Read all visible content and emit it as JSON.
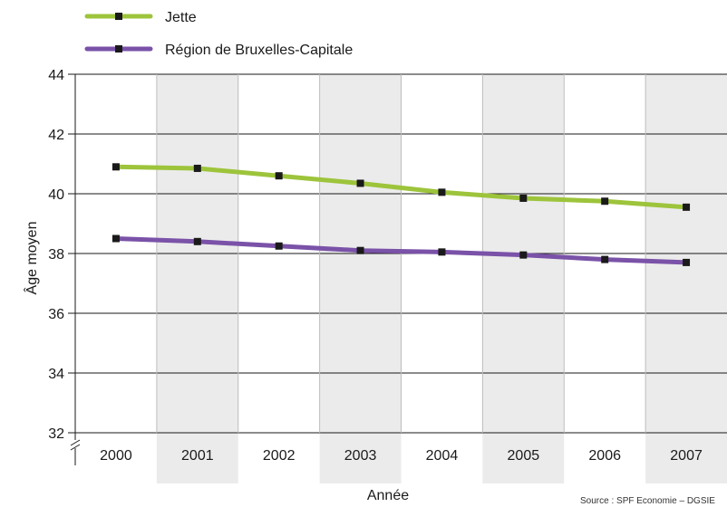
{
  "chart_data": {
    "type": "line",
    "categories": [
      "2000",
      "2001",
      "2002",
      "2003",
      "2004",
      "2005",
      "2006",
      "2007"
    ],
    "series": [
      {
        "name": "Jette",
        "color": "#9dc43b",
        "values": [
          40.9,
          40.85,
          40.6,
          40.35,
          40.05,
          39.85,
          39.75,
          39.55
        ]
      },
      {
        "name": "Région de Bruxelles-Capitale",
        "color": "#7a52a8",
        "values": [
          38.5,
          38.4,
          38.25,
          38.1,
          38.05,
          37.95,
          37.8,
          37.7
        ]
      }
    ],
    "xlabel": "Année",
    "ylabel": "Âge moyen",
    "ylim": [
      32,
      44
    ],
    "yticks": [
      "32",
      "34",
      "36",
      "38",
      "40",
      "42",
      "44"
    ],
    "grid": true,
    "legend_position": "top-left",
    "marker_color": "#1a1a1a",
    "alt_column_color": "#ebebeb",
    "source": "Source : SPF Economie – DGSIE"
  }
}
